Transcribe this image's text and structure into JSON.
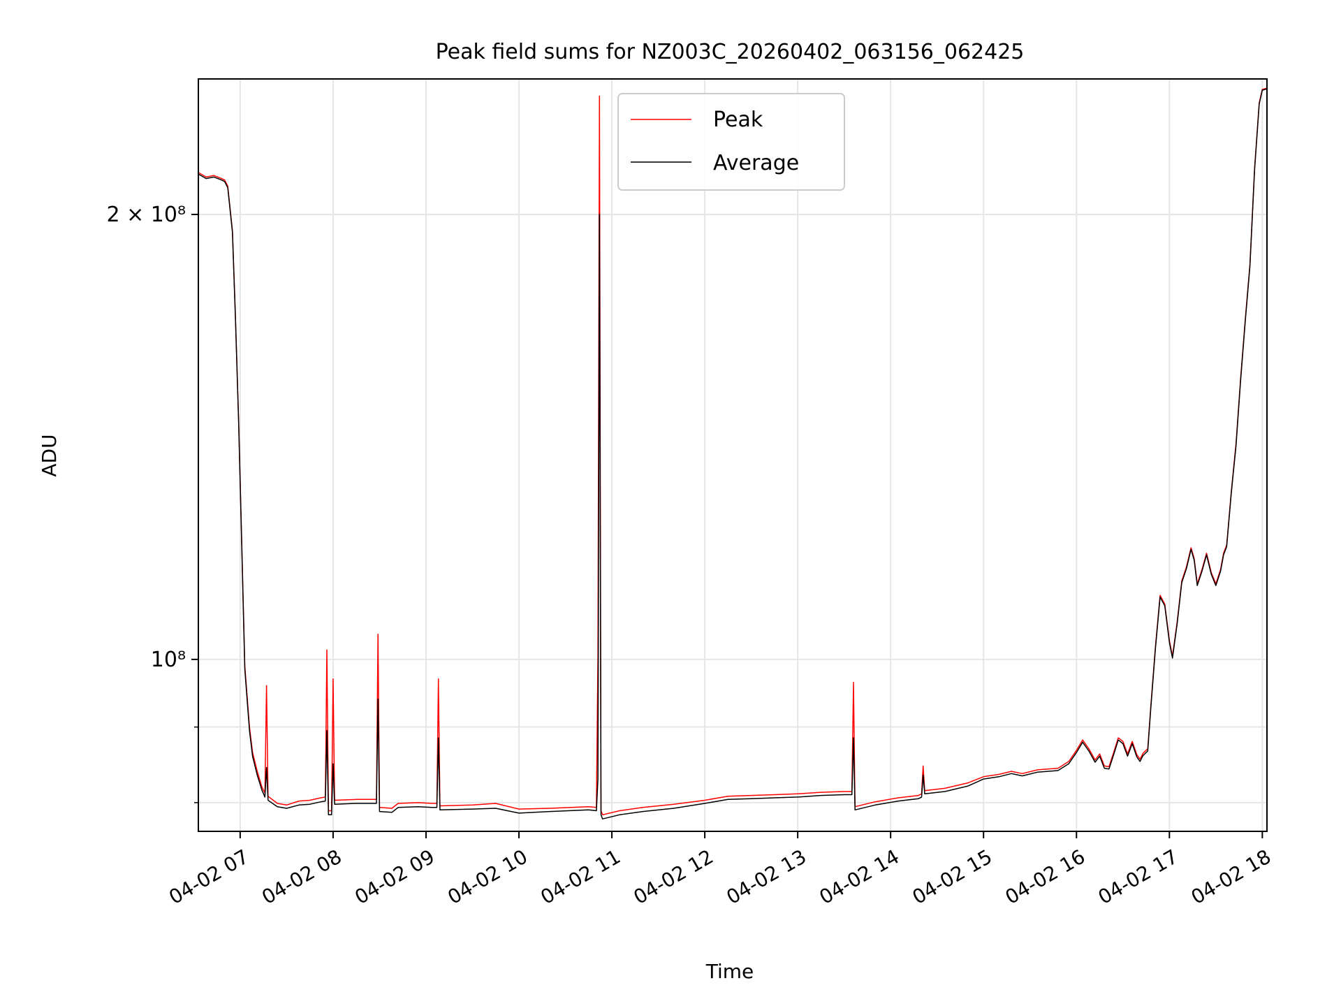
{
  "chart_data": {
    "type": "line",
    "title": "Peak field sums for NZ003C_20260402_063156_062425",
    "xlabel": "Time",
    "ylabel": "ADU",
    "yscale": "log",
    "xlim": [
      "2026-04-02 06:33",
      "2026-04-02 18:03"
    ],
    "ylim": [
      76500000,
      247000000
    ],
    "x_ticks": [
      "04-02 07",
      "04-02 08",
      "04-02 09",
      "04-02 10",
      "04-02 11",
      "04-02 12",
      "04-02 13",
      "04-02 14",
      "04-02 15",
      "04-02 16",
      "04-02 17",
      "04-02 18"
    ],
    "x_tick_values": [
      "2026-04-02 07:00",
      "2026-04-02 08:00",
      "2026-04-02 09:00",
      "2026-04-02 10:00",
      "2026-04-02 11:00",
      "2026-04-02 12:00",
      "2026-04-02 13:00",
      "2026-04-02 14:00",
      "2026-04-02 15:00",
      "2026-04-02 16:00",
      "2026-04-02 17:00",
      "2026-04-02 18:00"
    ],
    "y_ticks": [
      {
        "value": 200000000,
        "label": "2 × 10⁸"
      },
      {
        "value": 100000000,
        "label": "10⁸"
      }
    ],
    "y_minor_ticks": [
      90000000,
      80000000
    ],
    "grid": true,
    "legend": "upper-center",
    "series": [
      {
        "name": "Peak",
        "color": "#ff0000",
        "points": [
          [
            "06:33",
            213500000
          ],
          [
            "06:38",
            212000000
          ],
          [
            "06:43",
            212500000
          ],
          [
            "06:48",
            211500000
          ],
          [
            "06:50",
            211000000
          ],
          [
            "06:52",
            209000000
          ],
          [
            "06:55",
            195000000
          ],
          [
            "06:57",
            170000000
          ],
          [
            "06:59",
            145000000
          ],
          [
            "07:01",
            120000000
          ],
          [
            "07:03",
            99000000
          ],
          [
            "07:06",
            90000000
          ],
          [
            "07:08",
            86500000
          ],
          [
            "07:11",
            84000000
          ],
          [
            "07:14",
            82000000
          ],
          [
            "07:16",
            81200000
          ],
          [
            "07:17",
            96000000
          ],
          [
            "07:18",
            80800000
          ],
          [
            "07:24",
            79900000
          ],
          [
            "07:30",
            79700000
          ],
          [
            "07:38",
            80200000
          ],
          [
            "07:45",
            80300000
          ],
          [
            "07:52",
            80600000
          ],
          [
            "07:55",
            80700000
          ],
          [
            "07:56",
            101500000
          ],
          [
            "07:57",
            79000000
          ],
          [
            "07:59",
            79000000
          ],
          [
            "08:00",
            97000000
          ],
          [
            "08:01",
            80300000
          ],
          [
            "08:15",
            80400000
          ],
          [
            "08:28",
            80400000
          ],
          [
            "08:29",
            104000000
          ],
          [
            "08:30",
            79400000
          ],
          [
            "08:38",
            79300000
          ],
          [
            "08:42",
            79900000
          ],
          [
            "08:55",
            80000000
          ],
          [
            "09:04",
            79900000
          ],
          [
            "09:07",
            79900000
          ],
          [
            "09:08",
            97000000
          ],
          [
            "09:09",
            79600000
          ],
          [
            "09:30",
            79700000
          ],
          [
            "09:45",
            79900000
          ],
          [
            "10:00",
            79200000
          ],
          [
            "10:20",
            79300000
          ],
          [
            "10:45",
            79500000
          ],
          [
            "10:50",
            79400000
          ],
          [
            "10:51",
            100500000
          ],
          [
            "10:52",
            240500000
          ],
          [
            "10:53",
            79000000
          ],
          [
            "10:54",
            78500000
          ],
          [
            "11:05",
            79000000
          ],
          [
            "11:20",
            79400000
          ],
          [
            "11:40",
            79800000
          ],
          [
            "12:00",
            80300000
          ],
          [
            "12:15",
            80800000
          ],
          [
            "12:30",
            80900000
          ],
          [
            "12:45",
            81000000
          ],
          [
            "13:00",
            81100000
          ],
          [
            "13:15",
            81300000
          ],
          [
            "13:30",
            81400000
          ],
          [
            "13:35",
            81400000
          ],
          [
            "13:36",
            96500000
          ],
          [
            "13:37",
            79500000
          ],
          [
            "13:50",
            80100000
          ],
          [
            "14:05",
            80600000
          ],
          [
            "14:18",
            80900000
          ],
          [
            "14:20",
            81100000
          ],
          [
            "14:21",
            84700000
          ],
          [
            "14:22",
            81500000
          ],
          [
            "14:35",
            81800000
          ],
          [
            "14:50",
            82500000
          ],
          [
            "15:00",
            83300000
          ],
          [
            "15:10",
            83600000
          ],
          [
            "15:18",
            84000000
          ],
          [
            "15:25",
            83700000
          ],
          [
            "15:35",
            84200000
          ],
          [
            "15:48",
            84400000
          ],
          [
            "15:55",
            85300000
          ],
          [
            "16:00",
            86800000
          ],
          [
            "16:04",
            88200000
          ],
          [
            "16:08",
            87000000
          ],
          [
            "16:12",
            85500000
          ],
          [
            "16:15",
            86300000
          ],
          [
            "16:18",
            84700000
          ],
          [
            "16:21",
            84600000
          ],
          [
            "16:24",
            86500000
          ],
          [
            "16:27",
            88500000
          ],
          [
            "16:30",
            88000000
          ],
          [
            "16:33",
            86300000
          ],
          [
            "16:36",
            88000000
          ],
          [
            "16:39",
            86200000
          ],
          [
            "16:41",
            85600000
          ],
          [
            "16:43",
            86400000
          ],
          [
            "16:46",
            87000000
          ],
          [
            "16:48",
            93000000
          ],
          [
            "16:51",
            102000000
          ],
          [
            "16:54",
            110500000
          ],
          [
            "16:57",
            109000000
          ],
          [
            "17:00",
            103000000
          ],
          [
            "17:02",
            100500000
          ],
          [
            "17:05",
            106000000
          ],
          [
            "17:08",
            113000000
          ],
          [
            "17:11",
            115500000
          ],
          [
            "17:14",
            119000000
          ],
          [
            "17:16",
            117000000
          ],
          [
            "17:18",
            112500000
          ],
          [
            "17:21",
            115000000
          ],
          [
            "17:24",
            118000000
          ],
          [
            "17:27",
            114500000
          ],
          [
            "17:30",
            112500000
          ],
          [
            "17:33",
            115000000
          ],
          [
            "17:35",
            118000000
          ],
          [
            "17:37",
            119500000
          ],
          [
            "17:40",
            130000000
          ],
          [
            "17:43",
            140000000
          ],
          [
            "17:46",
            155000000
          ],
          [
            "17:49",
            170000000
          ],
          [
            "17:52",
            185000000
          ],
          [
            "17:55",
            215000000
          ],
          [
            "17:58",
            238000000
          ],
          [
            "18:00",
            243000000
          ],
          [
            "18:03",
            243500000
          ]
        ]
      },
      {
        "name": "Average",
        "color": "#000000",
        "points": [
          [
            "06:33",
            213000000
          ],
          [
            "06:38",
            211500000
          ],
          [
            "06:43",
            212000000
          ],
          [
            "06:48",
            211000000
          ],
          [
            "06:50",
            210500000
          ],
          [
            "06:52",
            208500000
          ],
          [
            "06:55",
            194500000
          ],
          [
            "06:57",
            169500000
          ],
          [
            "06:59",
            144500000
          ],
          [
            "07:01",
            119500000
          ],
          [
            "07:03",
            98500000
          ],
          [
            "07:06",
            89500000
          ],
          [
            "07:08",
            86000000
          ],
          [
            "07:11",
            83500000
          ],
          [
            "07:14",
            81600000
          ],
          [
            "07:16",
            80700000
          ],
          [
            "07:17",
            84500000
          ],
          [
            "07:18",
            80300000
          ],
          [
            "07:24",
            79500000
          ],
          [
            "07:30",
            79300000
          ],
          [
            "07:38",
            79700000
          ],
          [
            "07:45",
            79800000
          ],
          [
            "07:52",
            80100000
          ],
          [
            "07:55",
            80200000
          ],
          [
            "07:56",
            89500000
          ],
          [
            "07:57",
            78500000
          ],
          [
            "07:59",
            78500000
          ],
          [
            "08:00",
            85000000
          ],
          [
            "08:01",
            79800000
          ],
          [
            "08:15",
            79900000
          ],
          [
            "08:28",
            79900000
          ],
          [
            "08:29",
            94000000
          ],
          [
            "08:30",
            78900000
          ],
          [
            "08:38",
            78800000
          ],
          [
            "08:42",
            79400000
          ],
          [
            "08:55",
            79500000
          ],
          [
            "09:04",
            79400000
          ],
          [
            "09:07",
            79400000
          ],
          [
            "09:08",
            88500000
          ],
          [
            "09:09",
            79100000
          ],
          [
            "09:30",
            79200000
          ],
          [
            "09:45",
            79300000
          ],
          [
            "10:00",
            78700000
          ],
          [
            "10:20",
            78900000
          ],
          [
            "10:45",
            79100000
          ],
          [
            "10:50",
            79000000
          ],
          [
            "10:51",
            83000000
          ],
          [
            "10:52",
            200000000
          ],
          [
            "10:53",
            78500000
          ],
          [
            "10:54",
            78000000
          ],
          [
            "11:05",
            78500000
          ],
          [
            "11:20",
            78900000
          ],
          [
            "11:40",
            79300000
          ],
          [
            "12:00",
            79900000
          ],
          [
            "12:15",
            80400000
          ],
          [
            "12:30",
            80500000
          ],
          [
            "12:45",
            80600000
          ],
          [
            "13:00",
            80700000
          ],
          [
            "13:15",
            80900000
          ],
          [
            "13:30",
            81000000
          ],
          [
            "13:35",
            81000000
          ],
          [
            "13:36",
            88500000
          ],
          [
            "13:37",
            79100000
          ],
          [
            "13:50",
            79700000
          ],
          [
            "14:05",
            80200000
          ],
          [
            "14:18",
            80500000
          ],
          [
            "14:20",
            80700000
          ],
          [
            "14:21",
            83500000
          ],
          [
            "14:22",
            81100000
          ],
          [
            "14:35",
            81400000
          ],
          [
            "14:50",
            82100000
          ],
          [
            "15:00",
            83000000
          ],
          [
            "15:10",
            83300000
          ],
          [
            "15:18",
            83700000
          ],
          [
            "15:25",
            83400000
          ],
          [
            "15:35",
            83900000
          ],
          [
            "15:48",
            84100000
          ],
          [
            "15:55",
            85000000
          ],
          [
            "16:00",
            86500000
          ],
          [
            "16:04",
            87900000
          ],
          [
            "16:08",
            86700000
          ],
          [
            "16:12",
            85200000
          ],
          [
            "16:15",
            86000000
          ],
          [
            "16:18",
            84400000
          ],
          [
            "16:21",
            84300000
          ],
          [
            "16:24",
            86200000
          ],
          [
            "16:27",
            88200000
          ],
          [
            "16:30",
            87700000
          ],
          [
            "16:33",
            86000000
          ],
          [
            "16:36",
            87700000
          ],
          [
            "16:39",
            85900000
          ],
          [
            "16:41",
            85300000
          ],
          [
            "16:43",
            86100000
          ],
          [
            "16:46",
            86700000
          ],
          [
            "16:48",
            92700000
          ],
          [
            "16:51",
            101700000
          ],
          [
            "16:54",
            110200000
          ],
          [
            "16:57",
            108700000
          ],
          [
            "17:00",
            102700000
          ],
          [
            "17:02",
            100200000
          ],
          [
            "17:05",
            105700000
          ],
          [
            "17:08",
            112700000
          ],
          [
            "17:11",
            115200000
          ],
          [
            "17:14",
            118700000
          ],
          [
            "17:16",
            116700000
          ],
          [
            "17:18",
            112200000
          ],
          [
            "17:21",
            114700000
          ],
          [
            "17:24",
            117700000
          ],
          [
            "17:27",
            114200000
          ],
          [
            "17:30",
            112200000
          ],
          [
            "17:33",
            114700000
          ],
          [
            "17:35",
            117700000
          ],
          [
            "17:37",
            119200000
          ],
          [
            "17:40",
            129700000
          ],
          [
            "17:43",
            139500000
          ],
          [
            "17:46",
            154500000
          ],
          [
            "17:49",
            169500000
          ],
          [
            "17:52",
            184500000
          ],
          [
            "17:55",
            214500000
          ],
          [
            "17:58",
            237500000
          ],
          [
            "18:00",
            242700000
          ],
          [
            "18:03",
            243200000
          ]
        ]
      }
    ]
  }
}
